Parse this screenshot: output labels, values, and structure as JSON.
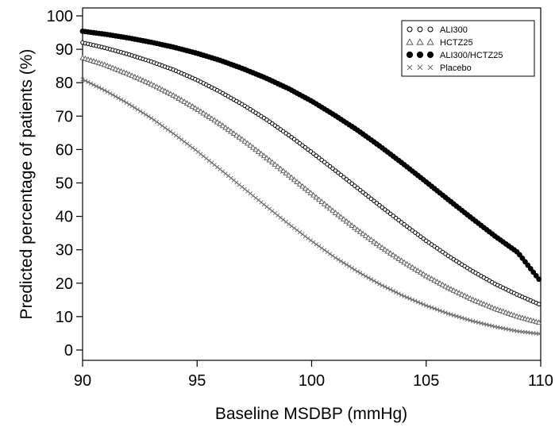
{
  "chart_data": {
    "type": "line",
    "title": "",
    "xlabel": "Baseline MSDBP (mmHg)",
    "ylabel": "Predicted percentage of patients (%)",
    "xlim": [
      90,
      110
    ],
    "ylim": [
      0,
      100
    ],
    "xticks": [
      90,
      95,
      100,
      105,
      110
    ],
    "yticks": [
      0,
      10,
      20,
      30,
      40,
      50,
      60,
      70,
      80,
      90,
      100
    ],
    "grid": false,
    "legend_position": "top-right",
    "series": [
      {
        "name": "ALI300",
        "marker": "circle-open",
        "x": [
          90,
          91,
          92,
          93,
          94,
          95,
          96,
          97,
          98,
          99,
          100,
          101,
          102,
          103,
          104,
          105,
          106,
          107,
          108,
          109,
          110
        ],
        "values": [
          92,
          90.4,
          88.5,
          86.3,
          83.8,
          80.8,
          77.3,
          73.4,
          69.1,
          64.3,
          59.2,
          53.9,
          48.5,
          43.1,
          37.8,
          32.7,
          28,
          23.7,
          19.8,
          16.5,
          13.5
        ]
      },
      {
        "name": "HCTZ25",
        "marker": "triangle-open",
        "x": [
          90,
          91,
          92,
          93,
          94,
          95,
          96,
          97,
          98,
          99,
          100,
          101,
          102,
          103,
          104,
          105,
          106,
          107,
          108,
          109,
          110
        ],
        "values": [
          87.5,
          85.3,
          82.6,
          79.6,
          76.1,
          72.1,
          67.7,
          62.9,
          57.7,
          52.3,
          46.8,
          41.3,
          36,
          31,
          26.4,
          22.2,
          18.5,
          15.2,
          12.4,
          10,
          8.1
        ]
      },
      {
        "name": "ALI300/HCTZ25",
        "marker": "circle-filled",
        "x": [
          90,
          91,
          92,
          93,
          94,
          95,
          96,
          97,
          98,
          99,
          100,
          101,
          102,
          103,
          104,
          105,
          106,
          107,
          108,
          109,
          110
        ],
        "values": [
          95.4,
          94.5,
          93.4,
          92.1,
          90.6,
          88.8,
          86.7,
          84.2,
          81.4,
          78.2,
          74.5,
          70.3,
          65.8,
          60.9,
          55.7,
          50.3,
          44.8,
          39.4,
          34.1,
          29.2,
          20.5
        ]
      },
      {
        "name": "Placebo",
        "marker": "x",
        "x": [
          90,
          91,
          92,
          93,
          94,
          95,
          96,
          97,
          98,
          99,
          100,
          101,
          102,
          103,
          104,
          105,
          106,
          107,
          108,
          109,
          110
        ],
        "values": [
          81,
          77.6,
          73.7,
          69.4,
          64.6,
          59.5,
          54.1,
          48.6,
          43.1,
          37.7,
          32.6,
          27.8,
          23.5,
          19.6,
          16.2,
          13.3,
          10.8,
          8.7,
          7,
          5.6,
          4.8
        ]
      }
    ]
  }
}
